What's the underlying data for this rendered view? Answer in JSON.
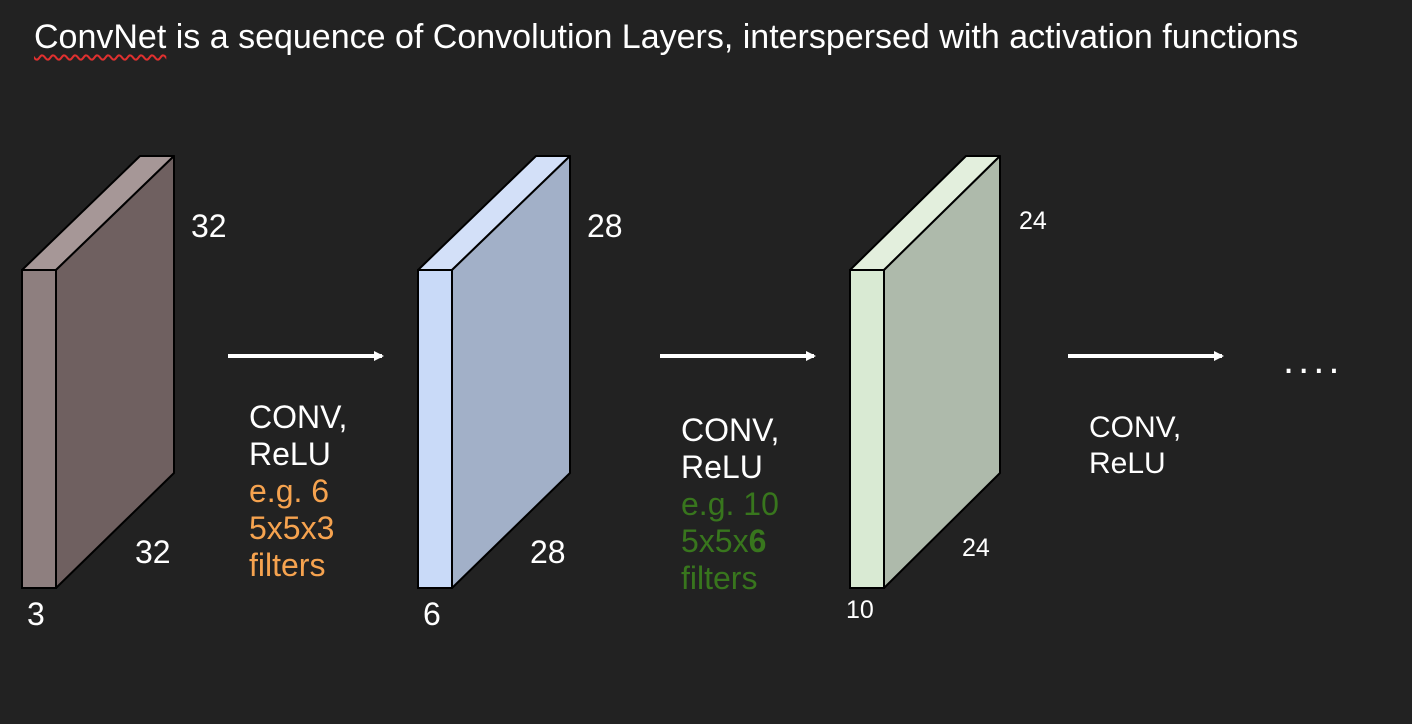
{
  "title": {
    "underlined": "ConvNet",
    "rest": " is a sequence of Convolution Layers, interspersed with activation functions"
  },
  "colors": {
    "background": "#222222",
    "text": "#ffffff",
    "orange_text": "#f6a34f",
    "green_text": "#38761d",
    "volume1": {
      "front": "#8e7f7f",
      "side": "#6f6060",
      "top": "#a69797"
    },
    "volume2": {
      "front": "#c9daf8",
      "side": "#a2b0c8",
      "top": "#d3e0f8"
    },
    "volume3": {
      "front": "#d9ead3",
      "side": "#aebaab",
      "top": "#e3efdd"
    }
  },
  "volumes": [
    {
      "height": "32",
      "width": "32",
      "depth": "3"
    },
    {
      "height": "28",
      "width": "28",
      "depth": "6"
    },
    {
      "height": "24",
      "width": "24",
      "depth": "10"
    }
  ],
  "layers": [
    {
      "line1": "CONV,",
      "line2": "ReLU",
      "example": "e.g. 6",
      "filter_dims": "5x5x3",
      "filters": "filters"
    },
    {
      "line1": "CONV,",
      "line2": "ReLU",
      "example": "e.g. 10",
      "filter_dims_prefix": "5x5x",
      "filter_dims_bold": "6",
      "filters": "filters"
    },
    {
      "line1": "CONV,",
      "line2": "ReLU"
    }
  ],
  "ellipsis": "...."
}
